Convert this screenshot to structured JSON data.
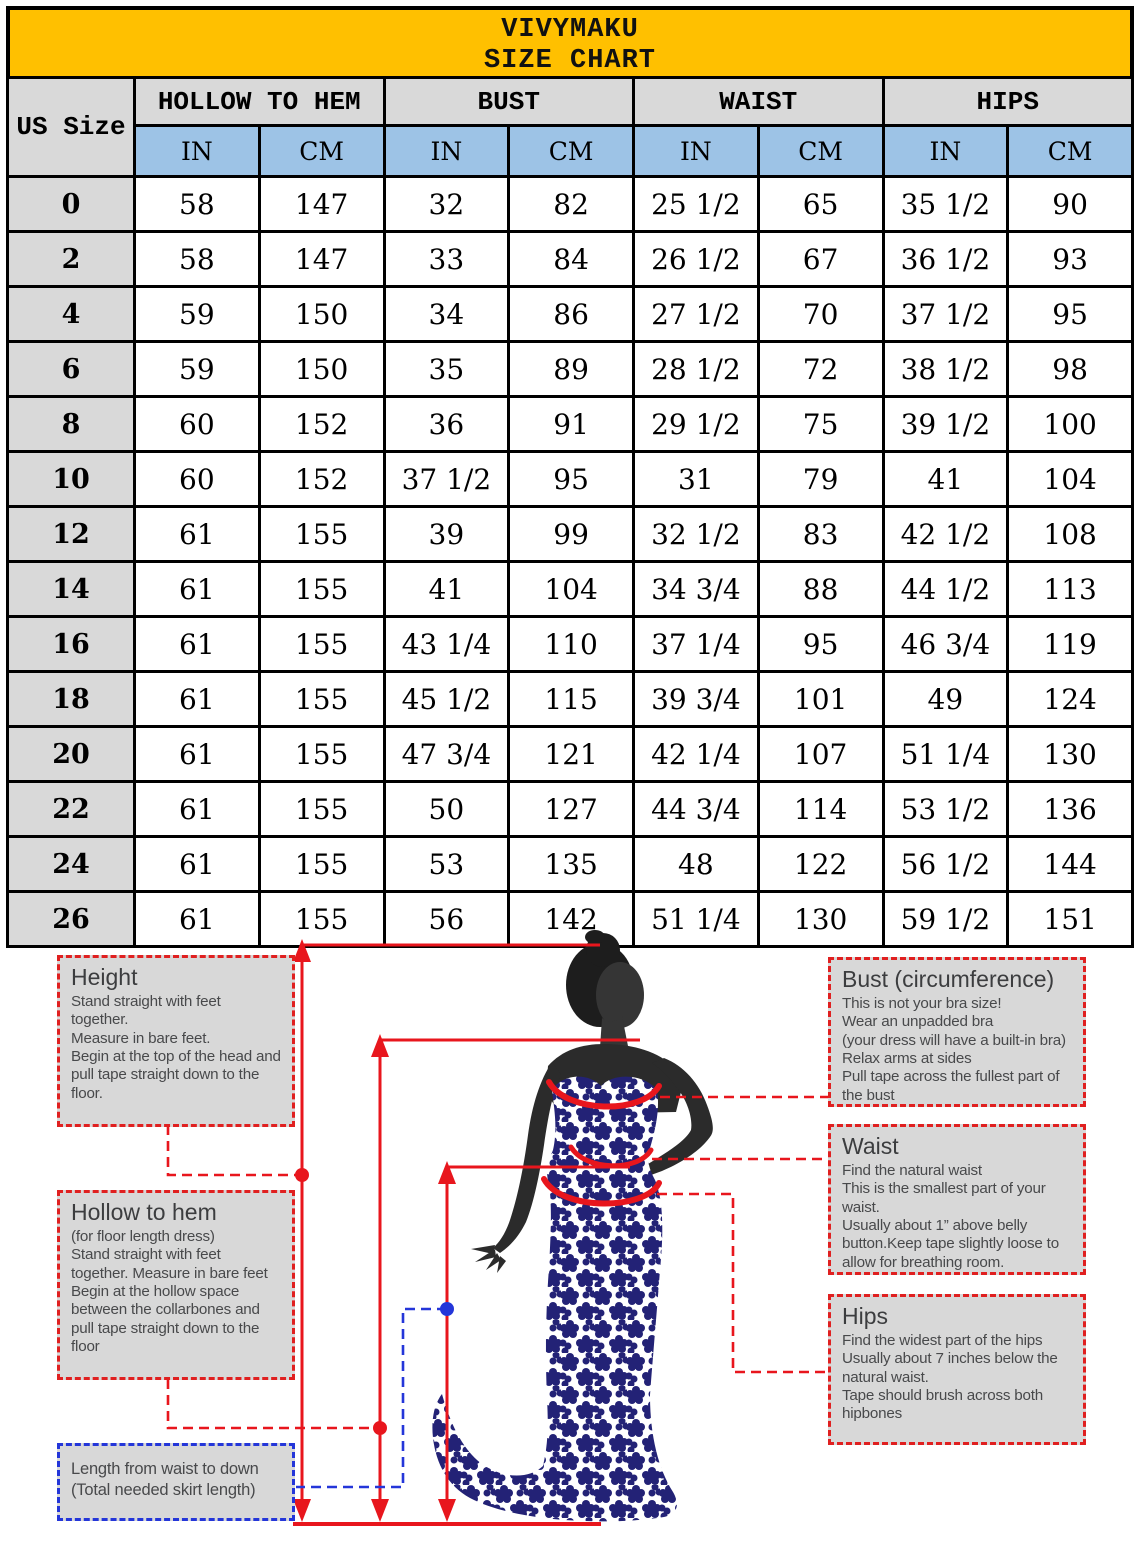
{
  "header": {
    "brand": "VIVYMAKU",
    "title": "SIZE CHART"
  },
  "table": {
    "corner_label": "US Size",
    "groups": [
      "HOLLOW TO HEM",
      "BUST",
      "WAIST",
      "HIPS"
    ],
    "units": [
      "IN",
      "CM",
      "IN",
      "CM",
      "IN",
      "CM",
      "IN",
      "CM"
    ],
    "rows": [
      {
        "size": "0",
        "values": [
          "58",
          "147",
          "32",
          "82",
          "25 1/2",
          "65",
          "35 1/2",
          "90"
        ]
      },
      {
        "size": "2",
        "values": [
          "58",
          "147",
          "33",
          "84",
          "26 1/2",
          "67",
          "36 1/2",
          "93"
        ]
      },
      {
        "size": "4",
        "values": [
          "59",
          "150",
          "34",
          "86",
          "27 1/2",
          "70",
          "37 1/2",
          "95"
        ]
      },
      {
        "size": "6",
        "values": [
          "59",
          "150",
          "35",
          "89",
          "28 1/2",
          "72",
          "38 1/2",
          "98"
        ]
      },
      {
        "size": "8",
        "values": [
          "60",
          "152",
          "36",
          "91",
          "29 1/2",
          "75",
          "39 1/2",
          "100"
        ]
      },
      {
        "size": "10",
        "values": [
          "60",
          "152",
          "37 1/2",
          "95",
          "31",
          "79",
          "41",
          "104"
        ]
      },
      {
        "size": "12",
        "values": [
          "61",
          "155",
          "39",
          "99",
          "32 1/2",
          "83",
          "42 1/2",
          "108"
        ]
      },
      {
        "size": "14",
        "values": [
          "61",
          "155",
          "41",
          "104",
          "34 3/4",
          "88",
          "44 1/2",
          "113"
        ]
      },
      {
        "size": "16",
        "values": [
          "61",
          "155",
          "43 1/4",
          "110",
          "37 1/4",
          "95",
          "46 3/4",
          "119"
        ]
      },
      {
        "size": "18",
        "values": [
          "61",
          "155",
          "45 1/2",
          "115",
          "39 3/4",
          "101",
          "49",
          "124"
        ]
      },
      {
        "size": "20",
        "values": [
          "61",
          "155",
          "47 3/4",
          "121",
          "42 1/4",
          "107",
          "51 1/4",
          "130"
        ]
      },
      {
        "size": "22",
        "values": [
          "61",
          "155",
          "50",
          "127",
          "44 3/4",
          "114",
          "53 1/2",
          "136"
        ]
      },
      {
        "size": "24",
        "values": [
          "61",
          "155",
          "53",
          "135",
          "48",
          "122",
          "56 1/2",
          "144"
        ]
      },
      {
        "size": "26",
        "values": [
          "61",
          "155",
          "56",
          "142",
          "51 1/4",
          "130",
          "59 1/2",
          "151"
        ]
      }
    ]
  },
  "guide": {
    "height": {
      "title": "Height",
      "lines": [
        "Stand straight with feet together.",
        "Measure in bare feet.",
        "Begin at the top of the head and pull tape straight down to the floor."
      ]
    },
    "hollow_to_hem": {
      "title": "Hollow to hem",
      "lines": [
        "(for floor length dress)",
        "Stand straight with feet together. Measure in bare feet",
        "Begin at the hollow space between the collarbones and pull tape straight down to the floor"
      ]
    },
    "skirt_length": {
      "lines": [
        "Length from waist to down",
        "(Total needed skirt length)"
      ]
    },
    "bust": {
      "title": "Bust (circumference)",
      "lines": [
        "This is not your bra size!",
        "Wear an unpadded bra",
        "(your dress will have a built-in bra)",
        "Relax arms at sides",
        "Pull tape across the fullest part of the bust"
      ]
    },
    "waist": {
      "title": "Waist",
      "lines": [
        "Find the natural waist",
        "This is the smallest part of your waist.",
        "Usually about 1” above belly button.Keep tape slightly loose to allow for breathing room."
      ]
    },
    "hips": {
      "title": "Hips",
      "lines": [
        "Find the widest part of the hips",
        "Usually about 7 inches below the natural waist.",
        "Tape should brush across both hipbones"
      ]
    }
  },
  "colors": {
    "title_bg": "#FFC000",
    "group_header_bg": "#D9D9D9",
    "unit_header_bg": "#9DC3E6",
    "size_col_bg": "#D9D9D9",
    "measure_red": "#E8161D",
    "measure_blue": "#2436D9",
    "dress_navy": "#232276",
    "body_dark": "#2B2B2B"
  }
}
